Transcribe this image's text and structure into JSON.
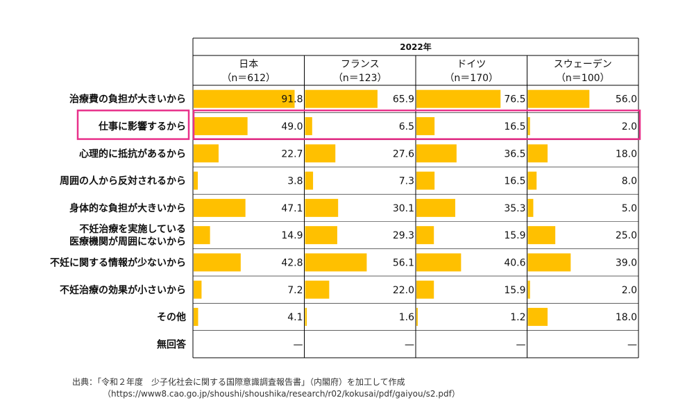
{
  "chart_data": {
    "type": "bar",
    "orientation": "horizontal",
    "title": "2022年",
    "xlim": [
      0,
      100
    ],
    "categories": [
      [
        "治療費の負担が大きいから"
      ],
      [
        "仕事に影響するから"
      ],
      [
        "心理的に抵抗があるから"
      ],
      [
        "周囲の人から反対されるから"
      ],
      [
        "身体的な負担が大きいから"
      ],
      [
        "不妊治療を実施している",
        "医療機関が周囲にないから"
      ],
      [
        "不妊に関する情報が少ないから"
      ],
      [
        "不妊治療の効果が小さいから"
      ],
      [
        "その他"
      ],
      [
        "無回答"
      ]
    ],
    "series": [
      {
        "name": "日本",
        "n_label": "（n＝612）",
        "values": [
          91.8,
          49.0,
          22.7,
          3.8,
          47.1,
          14.9,
          42.8,
          7.2,
          4.1,
          null
        ],
        "labels": [
          "91.8",
          "49.0",
          "22.7",
          "3.8",
          "47.1",
          "14.9",
          "42.8",
          "7.2",
          "4.1",
          "—"
        ]
      },
      {
        "name": "フランス",
        "n_label": "（n＝123）",
        "values": [
          65.9,
          6.5,
          27.6,
          7.3,
          30.1,
          29.3,
          56.1,
          22.0,
          1.6,
          null
        ],
        "labels": [
          "65.9",
          "6.5",
          "27.6",
          "7.3",
          "30.1",
          "29.3",
          "56.1",
          "22.0",
          "1.6",
          "—"
        ]
      },
      {
        "name": "ドイツ",
        "n_label": "（n＝170）",
        "values": [
          76.5,
          16.5,
          36.5,
          16.5,
          35.3,
          15.9,
          40.6,
          15.9,
          1.2,
          null
        ],
        "labels": [
          "76.5",
          "16.5",
          "36.5",
          "16.5",
          "35.3",
          "15.9",
          "40.6",
          "15.9",
          "1.2",
          "—"
        ]
      },
      {
        "name": "スウェーデン",
        "n_label": "（n＝100）",
        "values": [
          56.0,
          2.0,
          18.0,
          8.0,
          5.0,
          25.0,
          39.0,
          2.0,
          18.0,
          null
        ],
        "labels": [
          "56.0",
          "2.0",
          "18.0",
          "8.0",
          "5.0",
          "25.0",
          "39.0",
          "2.0",
          "18.0",
          "—"
        ]
      }
    ],
    "highlighted_category_index": 1
  },
  "colors": {
    "bar": "#FFC000",
    "highlight": "#E8308A",
    "grid": "#000000"
  },
  "source": {
    "line1": "出典：「令和２年度　少子化社会に関する国際意識調査報告書」（内閣府）を加工して作成",
    "line2": "（https://www8.cao.go.jp/shoushi/shoushika/research/r02/kokusai/pdf/gaiyou/s2.pdf）"
  }
}
